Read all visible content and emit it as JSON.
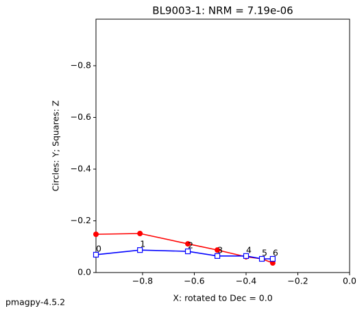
{
  "chart_data": {
    "type": "line",
    "title": "BL9003-1: NRM =  7.19e-06",
    "x_label": "X: rotated to Dec =     0.0",
    "y_label": "Circles: Y; Squares: Z",
    "footer": "pmagpy-4.5.2",
    "x": [
      -0.98,
      -0.81,
      -0.625,
      -0.511,
      -0.4,
      -0.339,
      -0.297
    ],
    "point_labels": [
      "0",
      "1",
      "2",
      "3",
      "4",
      "5",
      "6"
    ],
    "series": [
      {
        "name": "Y",
        "color": "#ff0000",
        "marker": "circle",
        "values": [
          -0.148,
          -0.151,
          -0.111,
          -0.087,
          -0.061,
          -0.053,
          -0.037
        ]
      },
      {
        "name": "Z",
        "color": "#0000ff",
        "marker": "square",
        "values": [
          -0.069,
          -0.087,
          -0.082,
          -0.064,
          -0.064,
          -0.053,
          -0.053
        ]
      }
    ],
    "xlim": [
      -0.98,
      0
    ],
    "ylim": [
      0,
      -0.98
    ],
    "xticks": [
      {
        "value": -0.8,
        "label": "−0.8"
      },
      {
        "value": -0.6,
        "label": "−0.6"
      },
      {
        "value": -0.4,
        "label": "−0.4"
      },
      {
        "value": -0.2,
        "label": "−0.2"
      },
      {
        "value": 0,
        "label": "0.0"
      }
    ],
    "yticks": [
      {
        "value": 0,
        "label": "0.0"
      },
      {
        "value": -0.2,
        "label": "−0.2"
      },
      {
        "value": -0.4,
        "label": "−0.4"
      },
      {
        "value": -0.6,
        "label": "−0.6"
      },
      {
        "value": -0.8,
        "label": "−0.8"
      }
    ]
  }
}
